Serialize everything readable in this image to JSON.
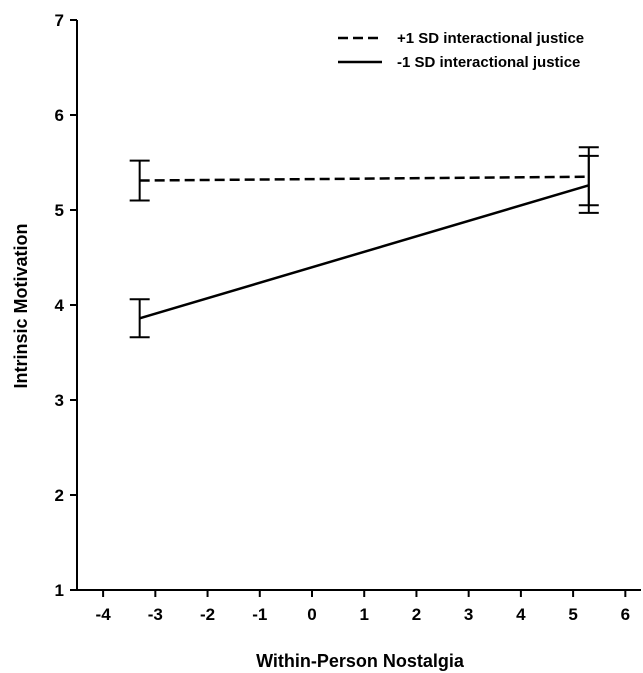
{
  "chart_data": {
    "type": "line",
    "title": "",
    "xlabel": "Within-Person Nostalgia",
    "ylabel": "Intrinsic Motivation",
    "xlim": [
      -4.5,
      6.3
    ],
    "ylim": [
      1,
      7
    ],
    "xticks": [
      "-4",
      "-3",
      "-2",
      "-1",
      "0",
      "1",
      "2",
      "3",
      "4",
      "5",
      "6"
    ],
    "yticks": [
      "1",
      "2",
      "3",
      "4",
      "5",
      "6",
      "7"
    ],
    "grid": false,
    "legend_position": "top-right",
    "series": [
      {
        "name": "+1 SD interactional justice",
        "line_style": "dashed",
        "x": [
          -3.3,
          5.3
        ],
        "y": [
          5.31,
          5.35
        ],
        "error_low": [
          5.1,
          5.05
        ],
        "error_high": [
          5.52,
          5.66
        ]
      },
      {
        "name": "-1 SD interactional justice",
        "line_style": "solid",
        "x": [
          -3.3,
          5.3
        ],
        "y": [
          3.86,
          5.26
        ],
        "error_low": [
          3.66,
          4.97
        ],
        "error_high": [
          4.06,
          5.57
        ]
      }
    ]
  }
}
